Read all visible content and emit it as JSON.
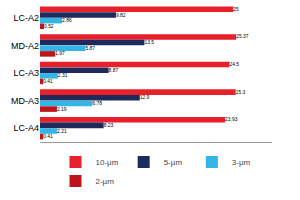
{
  "chart_data": {
    "type": "bar",
    "orientation": "horizontal",
    "categories": [
      "LC-A2",
      "MD-A2",
      "LC-A3",
      "MD-A3",
      "LC-A4"
    ],
    "series": [
      {
        "name": "10-µm",
        "color": "#e8202a",
        "values": [
          25,
          25.37,
          24.5,
          25.3,
          23.93
        ]
      },
      {
        "name": "5-µm",
        "color": "#1f2a5c",
        "values": [
          9.82,
          13.5,
          8.87,
          12.9,
          8.23
        ]
      },
      {
        "name": "3-µm",
        "color": "#33b5e5",
        "values": [
          2.86,
          5.87,
          2.31,
          6.78,
          2.21
        ]
      },
      {
        "name": "2-µm",
        "color": "#c0141c",
        "values": [
          0.52,
          1.97,
          0.41,
          2.19,
          0.41
        ]
      }
    ],
    "xlim": [
      0,
      30
    ],
    "data_labels": true,
    "tick_labels": "y",
    "grid": false,
    "legend": "bottom"
  }
}
